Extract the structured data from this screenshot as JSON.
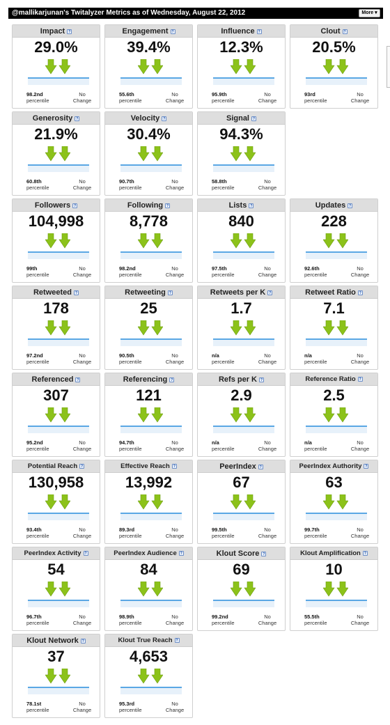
{
  "header": {
    "title": "@mallikarjunan's Twitalyzer Metrics as of Wednesday, August 22, 2012",
    "more_label": "More",
    "more_caret": "▾",
    "help_glyph": "?"
  },
  "colors": {
    "arrow": "#8cc21a",
    "trend_line": "#5aa7e4",
    "trend_fill": "#e7f1fa"
  },
  "icons": {
    "arrow": "double-down-arrow-icon",
    "help": "question-mark-icon"
  },
  "metrics": [
    {
      "label": "Impact",
      "value": "29.0%",
      "percentile": "98.2nd",
      "percentile_word": "percentile",
      "change_1": "No",
      "change_2": "Change"
    },
    {
      "label": "Engagement",
      "value": "39.4%",
      "percentile": "55.6th",
      "percentile_word": "percentile",
      "change_1": "No",
      "change_2": "Change"
    },
    {
      "label": "Influence",
      "value": "12.3%",
      "percentile": "95.9th",
      "percentile_word": "percentile",
      "change_1": "No",
      "change_2": "Change"
    },
    {
      "label": "Clout",
      "value": "20.5%",
      "percentile": "93rd",
      "percentile_word": "percentile",
      "change_1": "No",
      "change_2": "Change"
    },
    {
      "label": "Generosity",
      "value": "21.9%",
      "percentile": "60.8th",
      "percentile_word": "percentile",
      "change_1": "No",
      "change_2": "Change"
    },
    {
      "label": "Velocity",
      "value": "30.4%",
      "percentile": "90.7th",
      "percentile_word": "percentile",
      "change_1": "No",
      "change_2": "Change"
    },
    {
      "label": "Signal",
      "value": "94.3%",
      "percentile": "58.8th",
      "percentile_word": "percentile",
      "change_1": "No",
      "change_2": "Change"
    },
    {
      "label": "Followers",
      "value": "104,998",
      "percentile": "99th",
      "percentile_word": "percentile",
      "change_1": "No",
      "change_2": "Change"
    },
    {
      "label": "Following",
      "value": "8,778",
      "percentile": "98.2nd",
      "percentile_word": "percentile",
      "change_1": "No",
      "change_2": "Change"
    },
    {
      "label": "Lists",
      "value": "840",
      "percentile": "97.5th",
      "percentile_word": "percentile",
      "change_1": "No",
      "change_2": "Change"
    },
    {
      "label": "Updates",
      "value": "228",
      "percentile": "92.6th",
      "percentile_word": "percentile",
      "change_1": "No",
      "change_2": "Change"
    },
    {
      "label": "Retweeted",
      "value": "178",
      "percentile": "97.2nd",
      "percentile_word": "percentile",
      "change_1": "No",
      "change_2": "Change"
    },
    {
      "label": "Retweeting",
      "value": "25",
      "percentile": "90.5th",
      "percentile_word": "percentile",
      "change_1": "No",
      "change_2": "Change"
    },
    {
      "label": "Retweets per K",
      "value": "1.7",
      "percentile": "n/a",
      "percentile_word": "percentile",
      "change_1": "No",
      "change_2": "Change"
    },
    {
      "label": "Retweet Ratio",
      "value": "7.1",
      "percentile": "n/a",
      "percentile_word": "percentile",
      "change_1": "No",
      "change_2": "Change"
    },
    {
      "label": "Referenced",
      "value": "307",
      "percentile": "95.2nd",
      "percentile_word": "percentile",
      "change_1": "No",
      "change_2": "Change"
    },
    {
      "label": "Referencing",
      "value": "121",
      "percentile": "94.7th",
      "percentile_word": "percentile",
      "change_1": "No",
      "change_2": "Change"
    },
    {
      "label": "Refs per K",
      "value": "2.9",
      "percentile": "n/a",
      "percentile_word": "percentile",
      "change_1": "No",
      "change_2": "Change"
    },
    {
      "label": "Reference Ratio",
      "value": "2.5",
      "percentile": "n/a",
      "percentile_word": "percentile",
      "change_1": "No",
      "change_2": "Change"
    },
    {
      "label": "Potential Reach",
      "value": "130,958",
      "percentile": "93.4th",
      "percentile_word": "percentile",
      "change_1": "No",
      "change_2": "Change"
    },
    {
      "label": "Effective Reach",
      "value": "13,992",
      "percentile": "89.3rd",
      "percentile_word": "percentile",
      "change_1": "No",
      "change_2": "Change"
    },
    {
      "label": "PeerIndex",
      "value": "67",
      "percentile": "99.5th",
      "percentile_word": "percentile",
      "change_1": "No",
      "change_2": "Change"
    },
    {
      "label": "PeerIndex Authority",
      "value": "63",
      "percentile": "99.7th",
      "percentile_word": "percentile",
      "change_1": "No",
      "change_2": "Change"
    },
    {
      "label": "PeerIndex Activity",
      "value": "54",
      "percentile": "96.7th",
      "percentile_word": "percentile",
      "change_1": "No",
      "change_2": "Change"
    },
    {
      "label": "PeerIndex Audience",
      "value": "84",
      "percentile": "98.9th",
      "percentile_word": "percentile",
      "change_1": "No",
      "change_2": "Change"
    },
    {
      "label": "Klout Score",
      "value": "69",
      "percentile": "99.2nd",
      "percentile_word": "percentile",
      "change_1": "No",
      "change_2": "Change"
    },
    {
      "label": "Klout Amplification",
      "value": "10",
      "percentile": "55.5th",
      "percentile_word": "percentile",
      "change_1": "No",
      "change_2": "Change"
    },
    {
      "label": "Klout Network",
      "value": "37",
      "percentile": "78.1st",
      "percentile_word": "percentile",
      "change_1": "No",
      "change_2": "Change"
    },
    {
      "label": "Klout True Reach",
      "value": "4,653",
      "percentile": "95.3rd",
      "percentile_word": "percentile",
      "change_1": "No",
      "change_2": "Change"
    }
  ]
}
